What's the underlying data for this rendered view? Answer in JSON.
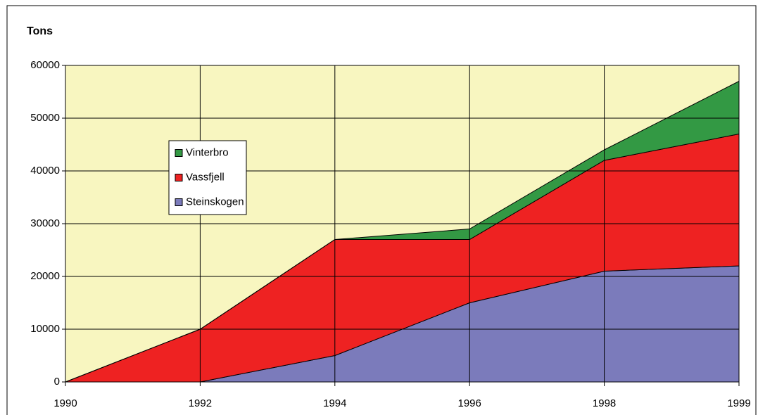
{
  "chart_data": {
    "type": "stacked_area",
    "y_label": "Tons",
    "categories": [
      "1990",
      "1992",
      "1994",
      "1996",
      "1998",
      "1999"
    ],
    "series": [
      {
        "name": "Steinskogen",
        "color": "#7b7bbb",
        "values": [
          0,
          0,
          5000,
          15000,
          21000,
          22000
        ]
      },
      {
        "name": "Vassfjell",
        "color": "#ee2222",
        "values": [
          0,
          10000,
          22000,
          12000,
          21000,
          25000
        ]
      },
      {
        "name": "Vinterbro",
        "color": "#339944",
        "values": [
          0,
          0,
          0,
          2000,
          2000,
          10000
        ]
      }
    ],
    "ylim": [
      0,
      60000
    ],
    "yticks": [
      0,
      10000,
      20000,
      30000,
      40000,
      50000,
      60000
    ],
    "grid": true,
    "plot_background": "#f8f6c0"
  }
}
